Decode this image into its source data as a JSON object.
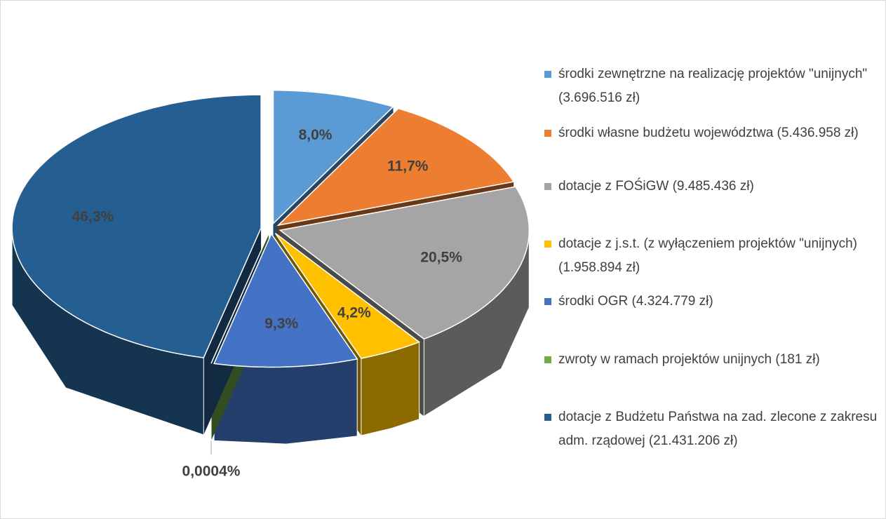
{
  "chart_data": {
    "type": "pie",
    "categories": [
      "środki zewnętrzne na realizację projektów \"unijnych\" (3.696.516 zł)",
      "środki własne budżetu województwa (5.436.958 zł)",
      "dotacje z FOŚiGW (9.485.436 zł)",
      "dotacje z j.s.t. (z wyłączeniem projektów \"unijnych) (1.958.894 zł)",
      "środki OGR (4.324.779 zł)",
      "zwroty w ramach projektów unijnych (181 zł)",
      "dotacje z Budżetu Państwa na zad. zlecone z zakresu adm. rządowej (21.431.206 zł)"
    ],
    "values": [
      8.0,
      11.7,
      20.5,
      4.2,
      9.3,
      0.0004,
      46.3
    ],
    "value_labels": [
      "8,0%",
      "11,7%",
      "20,5%",
      "4,2%",
      "9,3%",
      "0,0004%",
      "46,3%"
    ],
    "colors": [
      "#5b9bd5",
      "#ed7d31",
      "#a5a5a5",
      "#ffc000",
      "#4472c4",
      "#70ad47",
      "#255e91"
    ],
    "legend": "right"
  }
}
